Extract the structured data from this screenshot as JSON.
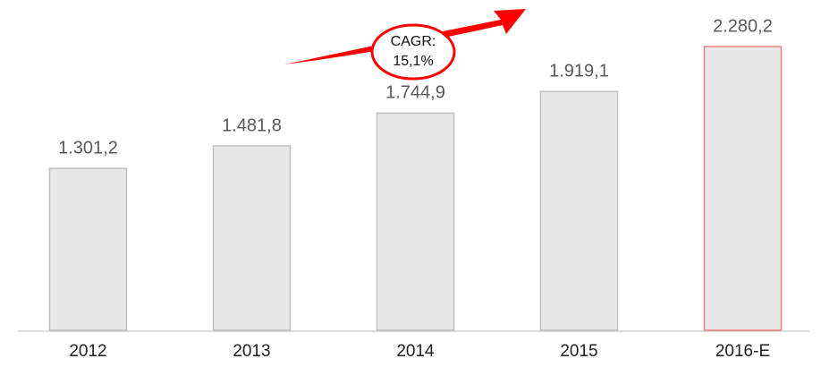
{
  "chart_data": {
    "type": "bar",
    "categories": [
      "2012",
      "2013",
      "2014",
      "2015",
      "2016-E"
    ],
    "values": [
      1301.2,
      1481.8,
      1744.9,
      1919.1,
      2280.2
    ],
    "value_labels": [
      "1.301,2",
      "1.481,8",
      "1.744,9",
      "1.919,1",
      "2.280,2"
    ],
    "color": "#e8e8e8",
    "edgecolors": [
      "#bfbfbf",
      "#bfbfbf",
      "#bfbfbf",
      "#bfbfbf",
      "#f08080"
    ],
    "annotation": [
      "CAGR:",
      "15,1%"
    ],
    "annotation_color": "#ff0000"
  }
}
